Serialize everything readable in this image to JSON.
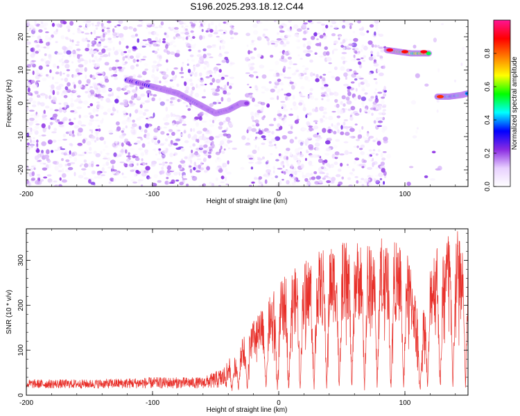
{
  "figure": {
    "title": "S196.2025.293.18.12.C44"
  },
  "chart_data": [
    {
      "type": "heatmap",
      "title": "S196.2025.293.18.12.C44",
      "xlabel": "Height of straight line (km)",
      "ylabel": "Frequency (Hz)",
      "xlim": [
        -200,
        150
      ],
      "ylim": [
        -25,
        25
      ],
      "x_ticks": [
        -200,
        -100,
        0,
        100
      ],
      "y_ticks": [
        -20,
        -10,
        0,
        10,
        20
      ],
      "colorbar": {
        "label": "Normalized spectral amplitude",
        "range": [
          0,
          1
        ],
        "ticks": [
          0.0,
          0.2,
          0.4,
          0.6,
          0.8
        ],
        "tick_labels": [
          "0.0",
          "0.2",
          "0.4",
          "0.6",
          "0.8"
        ],
        "colormap": [
          "#ffffff",
          "#e8d0ff",
          "#8a2be2",
          "#0000ff",
          "#00ffff",
          "#00ff00",
          "#ffff00",
          "#ff7f00",
          "#ff0000",
          "#ff1493"
        ]
      },
      "blank_x_ranges": [
        [
          -37,
          -25
        ],
        [
          85,
          122
        ],
        [
          122,
          150
        ]
      ],
      "ridges": [
        {
          "x": [
            -120,
            -100,
            -90,
            -80,
            -70,
            -60,
            -50,
            -40,
            -30,
            -25
          ],
          "y": [
            7,
            5,
            4,
            3,
            1,
            -1,
            -3,
            -2,
            0,
            0
          ],
          "peak": 0.3
        },
        {
          "x": [
            86,
            95,
            105,
            120
          ],
          "y": [
            16,
            15.5,
            15,
            15
          ],
          "peak": 0.85
        },
        {
          "x": [
            126,
            135,
            145,
            150
          ],
          "y": [
            2,
            2,
            2.5,
            3
          ],
          "peak": 0.55
        }
      ],
      "peak_points": [
        {
          "x": 88,
          "y": 16,
          "value": 0.92
        },
        {
          "x": 100,
          "y": 15.5,
          "value": 0.88
        },
        {
          "x": 115,
          "y": 15.5,
          "value": 0.9
        },
        {
          "x": 128,
          "y": 2,
          "value": 0.85
        }
      ]
    },
    {
      "type": "line",
      "xlabel": "Height of straight line (km)",
      "ylabel": "SNR (10 * v/v)",
      "xlim": [
        -200,
        150
      ],
      "ylim": [
        0,
        370
      ],
      "x_ticks": [
        -200,
        -100,
        0,
        100
      ],
      "y_ticks": [
        0,
        100,
        200,
        300
      ],
      "series": [
        {
          "color": "#e8302a",
          "envelope": {
            "x": [
              -200,
              -150,
              -100,
              -60,
              -45,
              -35,
              -25,
              -15,
              -5,
              5,
              15,
              25,
              40,
              60,
              80,
              100,
              105,
              110,
              112,
              118,
              125,
              135,
              150
            ],
            "y": [
              35,
              35,
              40,
              40,
              60,
              90,
              130,
              160,
              200,
              230,
              250,
              270,
              290,
              300,
              310,
              290,
              250,
              170,
              110,
              250,
              300,
              320,
              320
            ]
          },
          "dropouts": [
            -37,
            -32,
            -25,
            -10,
            -1,
            8,
            17,
            28,
            38,
            48,
            58,
            68,
            78,
            89,
            99,
            112,
            118,
            128,
            138,
            148
          ],
          "dropout_floor": 30,
          "baseline": 15
        }
      ]
    }
  ]
}
